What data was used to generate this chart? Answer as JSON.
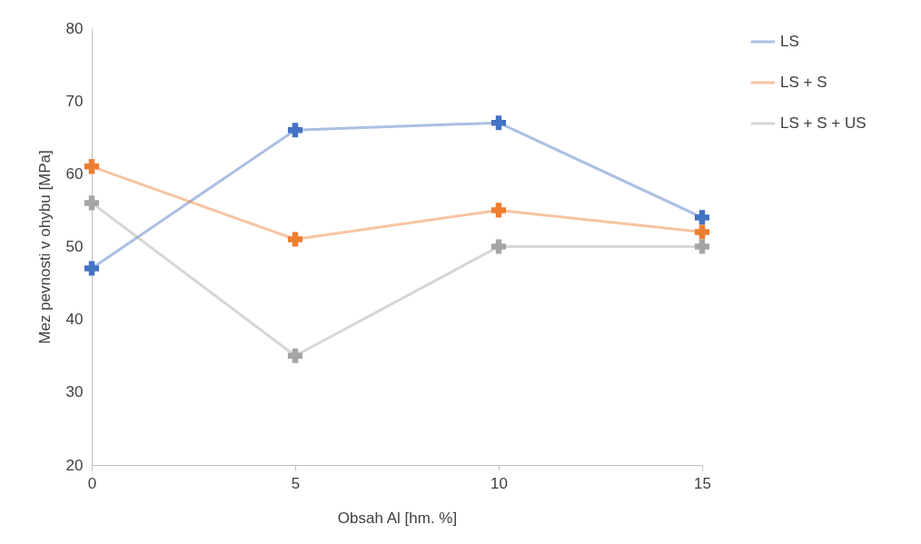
{
  "chart_data": {
    "type": "line",
    "xlabel": "Obsah Al [hm. %]",
    "ylabel": "Mez pevnosti v ohybu [MPa]",
    "x": [
      0,
      5,
      10,
      15
    ],
    "xlim": [
      0,
      15
    ],
    "xticks": [
      0,
      5,
      10,
      15
    ],
    "ylim": [
      20,
      80
    ],
    "yticks": [
      20,
      30,
      40,
      50,
      60,
      70,
      80
    ],
    "legend": "right",
    "marker": "cross",
    "series": [
      {
        "name": "LS",
        "color": "#4472c4",
        "values": [
          47,
          66,
          67,
          54
        ]
      },
      {
        "name": "LS + S",
        "color": "#ed7d31",
        "values": [
          61,
          51,
          55,
          52
        ]
      },
      {
        "name": "LS + S + US",
        "color": "#a5a5a5",
        "values": [
          56,
          35,
          50,
          50
        ]
      }
    ]
  }
}
